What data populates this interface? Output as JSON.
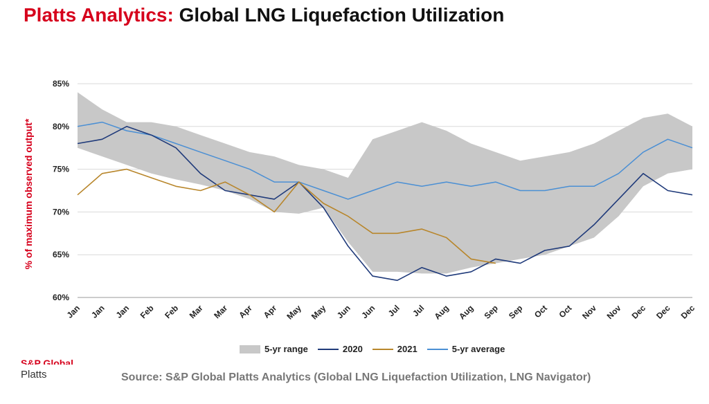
{
  "header": {
    "brand": "Platts Analytics:",
    "title": "Global LNG Liquefaction Utilization"
  },
  "footer": {
    "logo_top": "S&P Global",
    "logo_bottom": "Platts",
    "source": "Source: S&P Global Platts Analytics (Global LNG Liquefaction Utilization, LNG Navigator)"
  },
  "colors": {
    "brand": "#d6001c",
    "range": "#c8c8c8",
    "y2020": "#1f3a7a",
    "y2021": "#b8862b",
    "avg": "#4a8fd4"
  },
  "chart_data": {
    "type": "line",
    "title": "Global LNG Liquefaction Utilization",
    "ylabel": "% of maximum observed output*",
    "xlabel": "",
    "ylim": [
      60,
      85
    ],
    "yticks": [
      "60%",
      "65%",
      "70%",
      "75%",
      "80%",
      "85%"
    ],
    "grid": true,
    "legend_position": "bottom",
    "x_tick_labels": [
      "Jan",
      "Jan",
      "Jan",
      "Feb",
      "Feb",
      "Mar",
      "Mar",
      "Apr",
      "Apr",
      "May",
      "May",
      "Jun",
      "Jun",
      "Jul",
      "Jul",
      "Aug",
      "Aug",
      "Sep",
      "Sep",
      "Oct",
      "Oct",
      "Nov",
      "Nov",
      "Dec",
      "Dec",
      "Dec"
    ],
    "x": [
      "Jan",
      "Jan",
      "Jan",
      "Feb",
      "Feb",
      "Mar",
      "Mar",
      "Apr",
      "Apr",
      "May",
      "May",
      "Jun",
      "Jun",
      "Jul",
      "Jul",
      "Aug",
      "Aug",
      "Sep",
      "Sep",
      "Oct",
      "Oct",
      "Nov",
      "Nov",
      "Dec",
      "Dec",
      "Dec"
    ],
    "series": [
      {
        "name": "5-yr range",
        "kind": "band",
        "low": [
          77.5,
          76.5,
          75.5,
          74.5,
          73.8,
          73.2,
          72.5,
          71.5,
          70.0,
          69.8,
          70.5,
          66.5,
          63.0,
          63.0,
          62.8,
          62.8,
          63.5,
          64.0,
          64.5,
          65.0,
          66.0,
          67.0,
          69.5,
          73.0,
          74.5,
          75.0
        ],
        "high": [
          84.0,
          82.0,
          80.5,
          80.5,
          80.0,
          79.0,
          78.0,
          77.0,
          76.5,
          75.5,
          75.0,
          74.0,
          78.5,
          79.5,
          80.5,
          79.5,
          78.0,
          77.0,
          76.0,
          76.5,
          77.0,
          78.0,
          79.5,
          81.0,
          81.5,
          80.0
        ]
      },
      {
        "name": "2020",
        "values": [
          78.0,
          78.5,
          80.0,
          79.0,
          77.5,
          74.5,
          72.5,
          72.0,
          71.5,
          73.5,
          70.5,
          66.0,
          62.5,
          62.0,
          63.5,
          62.5,
          63.0,
          64.5,
          64.0,
          65.5,
          66.0,
          68.5,
          71.5,
          74.5,
          72.5,
          72.0
        ]
      },
      {
        "name": "2021",
        "values": [
          72.0,
          74.5,
          75.0,
          74.0,
          73.0,
          72.5,
          73.5,
          72.0,
          70.0,
          73.5,
          71.0,
          69.5,
          67.5,
          67.5,
          68.0,
          67.0,
          64.5,
          64.0,
          null,
          null,
          null,
          null,
          null,
          null,
          null,
          null
        ]
      },
      {
        "name": "5-yr average",
        "values": [
          80.0,
          80.5,
          79.5,
          79.0,
          78.0,
          77.0,
          76.0,
          75.0,
          73.5,
          73.5,
          72.5,
          71.5,
          72.5,
          73.5,
          73.0,
          73.5,
          73.0,
          73.5,
          72.5,
          72.5,
          73.0,
          73.0,
          74.5,
          77.0,
          78.5,
          77.5
        ]
      }
    ]
  }
}
